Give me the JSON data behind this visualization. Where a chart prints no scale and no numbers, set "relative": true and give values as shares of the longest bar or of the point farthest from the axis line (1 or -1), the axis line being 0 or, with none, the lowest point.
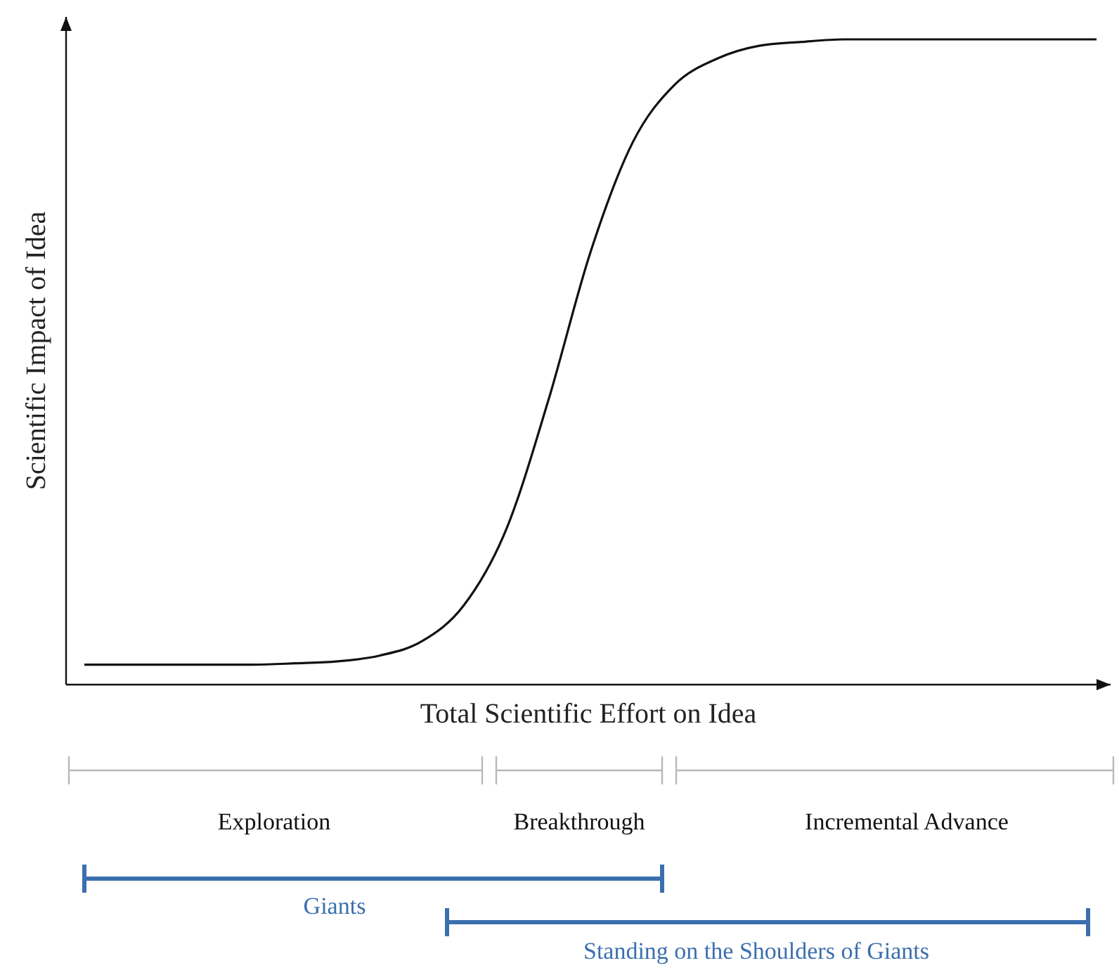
{
  "chart_data": {
    "type": "line",
    "relative": true,
    "xlabel": "Total Scientific Effort on Idea",
    "ylabel": "Scientific Impact of Idea",
    "categories": [
      null,
      null,
      null,
      null,
      null,
      null,
      null,
      null,
      null,
      null,
      null,
      null,
      null,
      null,
      null,
      null,
      null,
      null,
      null,
      null,
      null,
      null,
      null,
      null,
      null
    ],
    "series": [
      {
        "color": "#111111",
        "values": [
          0.031,
          0.031,
          0.031,
          0.031,
          0.031,
          0.033,
          0.036,
          0.045,
          0.067,
          0.123,
          0.24,
          0.44,
          0.67,
          0.84,
          0.93,
          0.97,
          0.99,
          0.996,
          1,
          1,
          1,
          1,
          1,
          1,
          1
        ]
      }
    ],
    "annotations": [
      "Exploration",
      "Breakthrough",
      "Incremental Advance",
      "Giants",
      "Standing on the Shoulders of Giants"
    ],
    "line_style": "solid"
  }
}
